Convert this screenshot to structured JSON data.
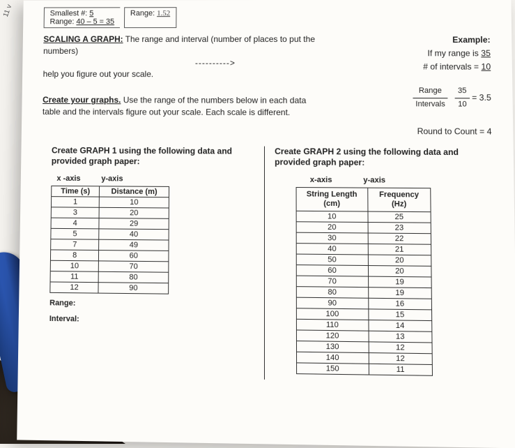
{
  "margin": "11 v",
  "top": {
    "smallest_label": "Smallest #:",
    "smallest_val": "5",
    "range_label": "Range:",
    "range_calc": "40 – 5 = 35",
    "range2_label": "Range:",
    "range2_val": "1.52"
  },
  "scaling": {
    "title": "SCALING A GRAPH:",
    "text1": "The range and interval (number of places to put the numbers)",
    "arrow": "---------->",
    "text2": "help you figure out your scale."
  },
  "example": {
    "title": "Example:",
    "line1a": "If my range is ",
    "line1b": "35",
    "line2a": "# of intervals = ",
    "line2b": "10",
    "frac_lbl_num": "Range",
    "frac_lbl_den": "Intervals",
    "frac_num": "35",
    "frac_den": "10",
    "frac_eq": "= 3.5",
    "round": "Round to Count = 4"
  },
  "create": {
    "title": "Create your graphs.",
    "text": "Use the range of the numbers below in each data table and the intervals figure out your scale. Each scale is different."
  },
  "g1": {
    "header": "Create GRAPH 1 using the following data and provided graph paper:",
    "xaxis": "x -axis",
    "yaxis": "y-axis",
    "col1": "Time (s)",
    "col2": "Distance (m)",
    "rows": [
      [
        "1",
        "10"
      ],
      [
        "3",
        "20"
      ],
      [
        "4",
        "29"
      ],
      [
        "5",
        "40"
      ],
      [
        "7",
        "49"
      ],
      [
        "8",
        "60"
      ],
      [
        "10",
        "70"
      ],
      [
        "11",
        "80"
      ],
      [
        "12",
        "90"
      ]
    ],
    "range_lbl": "Range:",
    "interval_lbl": "Interval:"
  },
  "g2": {
    "header": "Create GRAPH 2 using the following data and provided graph paper:",
    "xaxis": "x-axis",
    "yaxis": "y-axis",
    "col1": "String Length (cm)",
    "col2": "Frequency (Hz)",
    "rows": [
      [
        "10",
        "25"
      ],
      [
        "20",
        "23"
      ],
      [
        "30",
        "22"
      ],
      [
        "40",
        "21"
      ],
      [
        "50",
        "20"
      ],
      [
        "60",
        "20"
      ],
      [
        "70",
        "19"
      ],
      [
        "80",
        "19"
      ],
      [
        "90",
        "16"
      ],
      [
        "100",
        "15"
      ],
      [
        "110",
        "14"
      ],
      [
        "120",
        "13"
      ],
      [
        "130",
        "12"
      ],
      [
        "140",
        "12"
      ],
      [
        "150",
        "11"
      ]
    ]
  },
  "colors": {
    "paper": "#fdfcf9",
    "ink": "#222222",
    "border": "#333333",
    "pen": "#2a55b0"
  }
}
